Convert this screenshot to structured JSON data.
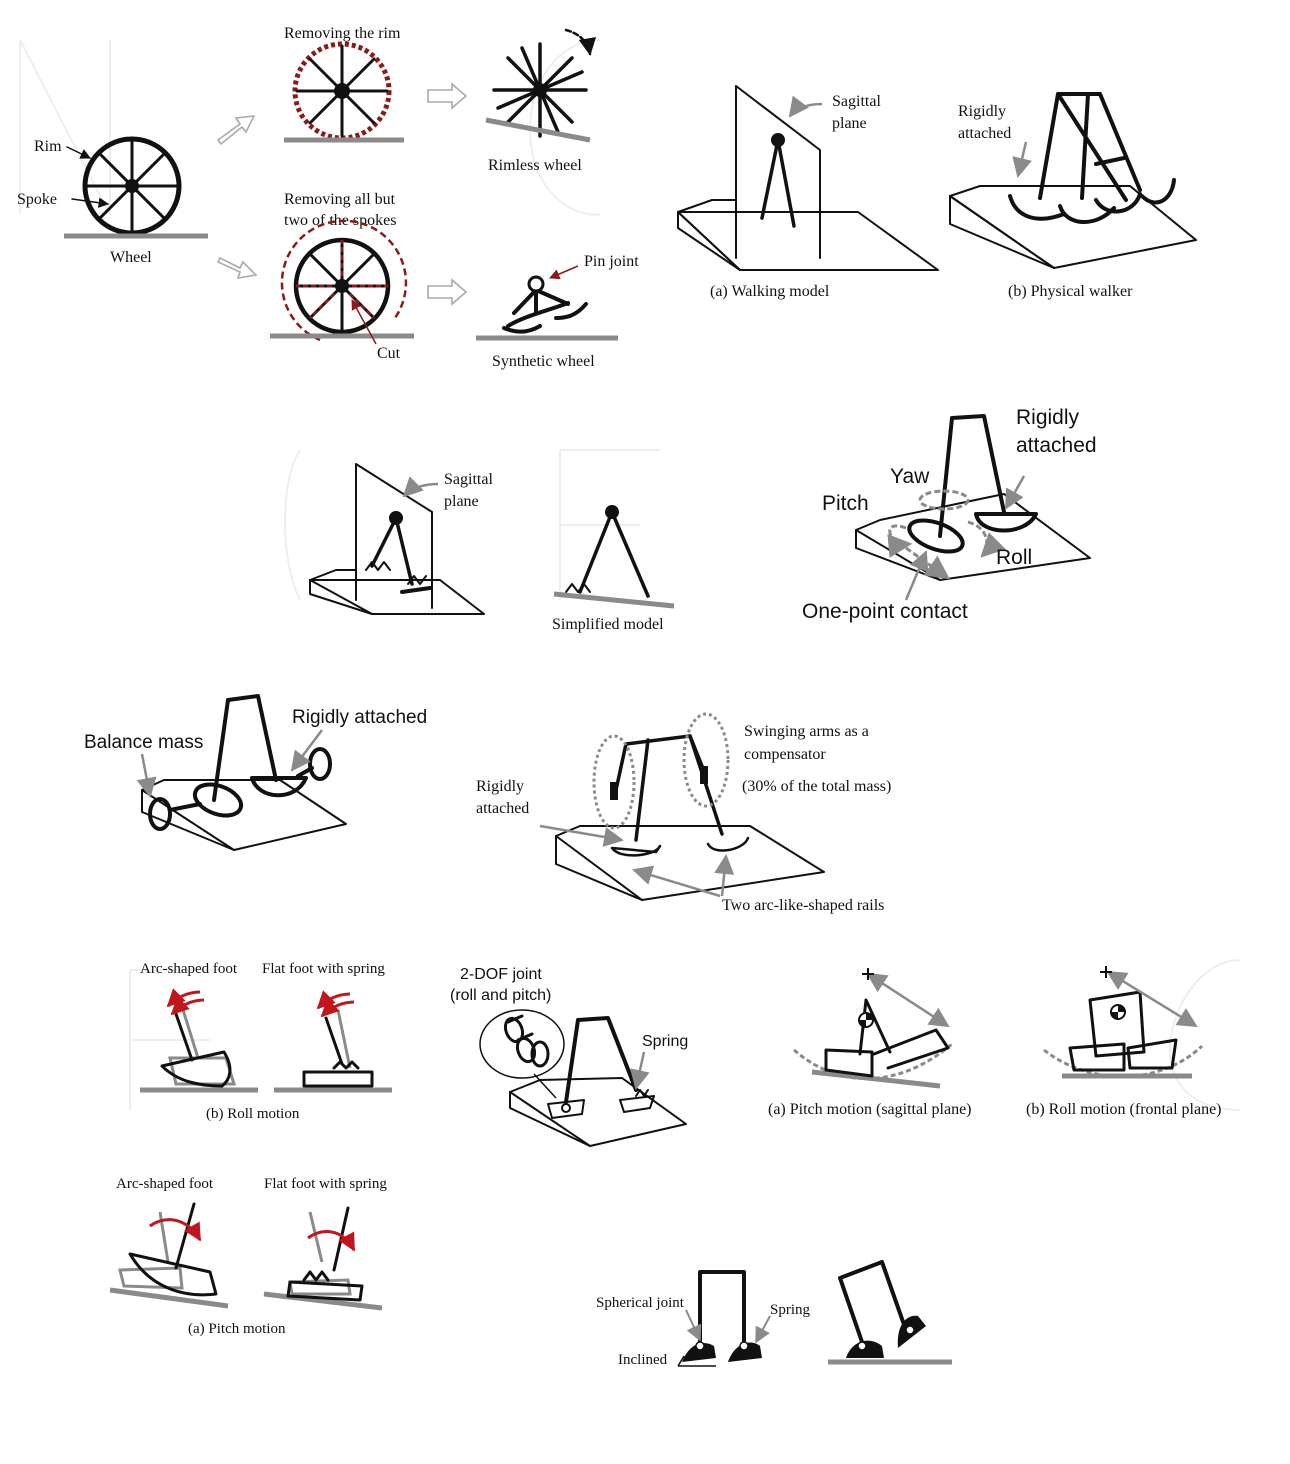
{
  "colors": {
    "ink": "#111111",
    "ground": "#8a8a8a",
    "accent_red": "#8b1a1a",
    "bright_red": "#c0161c",
    "watermark": "#ececec"
  },
  "wheel_panel": {
    "rim": "Rim",
    "spoke": "Spoke",
    "wheel": "Wheel",
    "removing_rim": "Removing the rim",
    "rimless_wheel": "Rimless wheel",
    "removing_spokes_1": "Removing all but",
    "removing_spokes_2": "two of the spokes",
    "cut": "Cut",
    "pin_joint": "Pin joint",
    "synthetic_wheel": "Synthetic wheel"
  },
  "walking_model": {
    "sagittal_1": "Sagittal",
    "sagittal_2": "plane",
    "caption": "(a) Walking model"
  },
  "physical_walker": {
    "rigid_1": "Rigidly",
    "rigid_2": "attached",
    "caption": "(b) Physical walker"
  },
  "spring_model": {
    "sagittal_1": "Sagittal",
    "sagittal_2": "plane",
    "simplified": "Simplified model"
  },
  "dof_figure": {
    "rigid_1": "Rigidly",
    "rigid_2": "attached",
    "yaw": "Yaw",
    "pitch": "Pitch",
    "roll": "Roll",
    "contact": "One-point contact"
  },
  "balance_figure": {
    "balance_mass": "Balance mass",
    "rigid": "Rigidly attached"
  },
  "arms_figure": {
    "swing_1": "Swinging arms as a",
    "swing_2": "compensator",
    "mass_note": "(30% of the total mass)",
    "rigid_1": "Rigidly",
    "rigid_2": "attached",
    "rails": "Two arc-like-shaped rails"
  },
  "roll_feet": {
    "arc_foot": "Arc-shaped foot",
    "flat_foot": "Flat foot with spring",
    "caption": "(b) Roll motion"
  },
  "joint_figure": {
    "dof_1": "2-DOF joint",
    "dof_2": "(roll and pitch)",
    "spring": "Spring"
  },
  "motion_planes": {
    "pitch_caption": "(a)  Pitch motion (sagittal plane)",
    "roll_caption": "(b) Roll motion (frontal plane)"
  },
  "pitch_feet": {
    "arc_foot": "Arc-shaped foot",
    "flat_foot": "Flat foot with spring",
    "caption": "(a) Pitch motion"
  },
  "spherical_figure": {
    "spherical": "Spherical joint",
    "spring": "Spring",
    "inclined": "Inclined"
  }
}
